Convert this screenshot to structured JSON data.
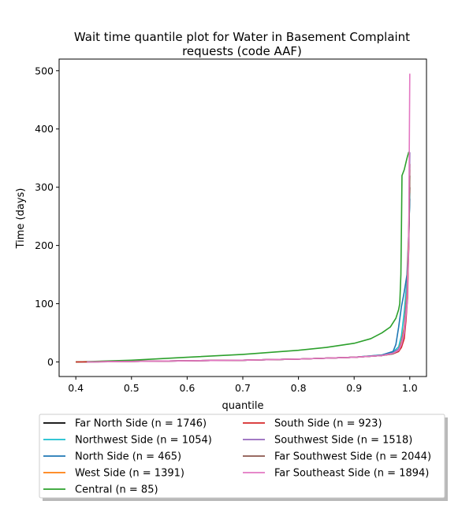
{
  "chart_data": {
    "type": "line",
    "title_lines": [
      "Wait time quantile plot for Water in Basement Complaint",
      "requests (code AAF)"
    ],
    "xlabel": "quantile",
    "ylabel": "Time (days)",
    "xlim": [
      0.37,
      1.03
    ],
    "ylim": [
      -25,
      520
    ],
    "xticks": [
      0.4,
      0.5,
      0.6,
      0.7,
      0.8,
      0.9,
      1.0
    ],
    "xtick_labels": [
      "0.4",
      "0.5",
      "0.6",
      "0.7",
      "0.8",
      "0.9",
      "1.0"
    ],
    "yticks": [
      0,
      100,
      200,
      300,
      400,
      500
    ],
    "ytick_labels": [
      "0",
      "100",
      "200",
      "300",
      "400",
      "500"
    ],
    "grid": false,
    "legend_position": "below",
    "series": [
      {
        "name": "Far North Side (n = 1746)",
        "color": "#000000",
        "x": [
          0.4,
          0.5,
          0.6,
          0.7,
          0.8,
          0.9,
          0.95,
          0.97,
          0.98,
          0.985,
          0.99,
          0.995,
          0.998,
          1.0
        ],
        "y": [
          0,
          1,
          2,
          3,
          5,
          8,
          11,
          15,
          22,
          32,
          55,
          110,
          200,
          300
        ]
      },
      {
        "name": "Northwest Side (n = 1054)",
        "color": "#17becf",
        "x": [
          0.4,
          0.5,
          0.6,
          0.7,
          0.8,
          0.9,
          0.95,
          0.97,
          0.98,
          0.985,
          0.99,
          0.995,
          0.998,
          1.0
        ],
        "y": [
          0,
          1,
          2,
          3,
          5,
          8,
          12,
          17,
          26,
          45,
          85,
          140,
          210,
          290
        ]
      },
      {
        "name": "North Side (n = 465)",
        "color": "#1f77b4",
        "x": [
          0.4,
          0.5,
          0.6,
          0.7,
          0.8,
          0.9,
          0.95,
          0.97,
          0.975,
          0.98,
          0.985,
          0.99,
          0.995,
          0.998,
          1.0
        ],
        "y": [
          0,
          1,
          2,
          3,
          5,
          8,
          12,
          18,
          30,
          60,
          95,
          120,
          150,
          220,
          280
        ]
      },
      {
        "name": "West Side (n = 1391)",
        "color": "#ff7f0e",
        "x": [
          0.4,
          0.5,
          0.6,
          0.7,
          0.8,
          0.9,
          0.95,
          0.97,
          0.98,
          0.985,
          0.99,
          0.995,
          0.998,
          1.0
        ],
        "y": [
          0,
          1,
          2,
          3,
          5,
          8,
          11,
          15,
          22,
          35,
          60,
          120,
          220,
          330
        ]
      },
      {
        "name": "Central (n = 85)",
        "color": "#2ca02c",
        "x": [
          0.4,
          0.5,
          0.6,
          0.7,
          0.8,
          0.85,
          0.9,
          0.93,
          0.95,
          0.965,
          0.975,
          0.98,
          0.982,
          0.984,
          0.985,
          0.986,
          0.99,
          0.995,
          0.998,
          1.0
        ],
        "y": [
          0,
          3,
          8,
          13,
          20,
          25,
          32,
          40,
          50,
          60,
          75,
          90,
          100,
          150,
          230,
          320,
          330,
          350,
          360,
          360
        ]
      },
      {
        "name": "South Side (n = 923)",
        "color": "#d62728",
        "x": [
          0.4,
          0.5,
          0.6,
          0.7,
          0.8,
          0.9,
          0.95,
          0.97,
          0.98,
          0.985,
          0.99,
          0.993,
          0.996,
          0.998,
          1.0
        ],
        "y": [
          0,
          1,
          2,
          3,
          5,
          8,
          11,
          14,
          18,
          25,
          40,
          70,
          110,
          200,
          340
        ]
      },
      {
        "name": "Southwest Side (n = 1518)",
        "color": "#9467bd",
        "x": [
          0.42,
          0.5,
          0.6,
          0.7,
          0.8,
          0.9,
          0.95,
          0.97,
          0.98,
          0.985,
          0.99,
          0.995,
          0.998,
          1.0
        ],
        "y": [
          0,
          1,
          2,
          3,
          5,
          8,
          11,
          15,
          22,
          32,
          55,
          110,
          200,
          360
        ]
      },
      {
        "name": "Far Southwest Side (n = 2044)",
        "color": "#8c564b",
        "x": [
          0.42,
          0.5,
          0.6,
          0.7,
          0.8,
          0.9,
          0.95,
          0.97,
          0.98,
          0.985,
          0.99,
          0.995,
          0.998,
          1.0
        ],
        "y": [
          0,
          1,
          2,
          3,
          5,
          8,
          11,
          14,
          20,
          30,
          50,
          100,
          190,
          320
        ]
      },
      {
        "name": "Far Southeast Side (n = 1894)",
        "color": "#e377c2",
        "x": [
          0.42,
          0.5,
          0.6,
          0.7,
          0.8,
          0.9,
          0.95,
          0.97,
          0.98,
          0.985,
          0.99,
          0.995,
          0.998,
          0.999,
          1.0
        ],
        "y": [
          0,
          1,
          2,
          3,
          5,
          8,
          11,
          15,
          20,
          30,
          50,
          100,
          200,
          350,
          495
        ]
      }
    ]
  }
}
